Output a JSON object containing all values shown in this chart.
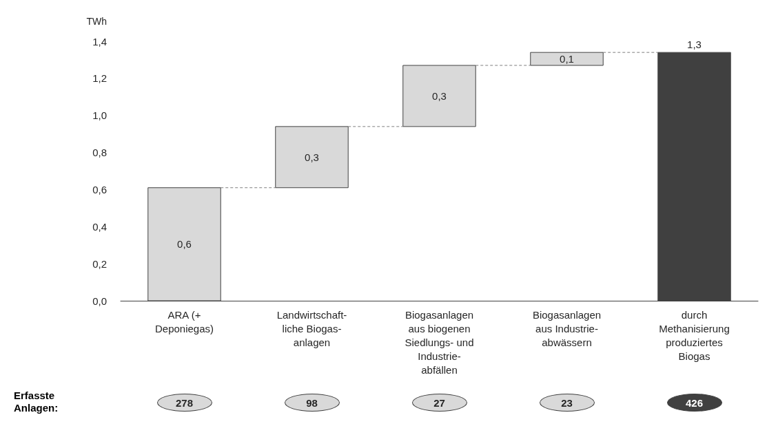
{
  "chart_data": {
    "type": "bar",
    "ylabel": "TWh",
    "categories": [
      "ARA (+\nDeponiegas)",
      "Landwirtschaft-\nliche Biogas-\nanlagen",
      "Biogasanlagen\naus biogenen\nSiedlungs- und\nIndustrie-\nabfällen",
      "Biogasanlagen\naus Industrie-\nabwässern",
      "durch\nMethanisierung\nproduziertes\nBiogas"
    ],
    "values": [
      0.61,
      0.33,
      0.33,
      0.07,
      1.34
    ],
    "base": [
      0,
      0.61,
      0.94,
      1.27,
      0
    ],
    "colors": [
      "#d9d9d9",
      "#d9d9d9",
      "#d9d9d9",
      "#d9d9d9",
      "#404040"
    ],
    "value_labels": [
      "0,6",
      "0,3",
      "0,3",
      "0,1",
      "1,3"
    ],
    "ylim": [
      0,
      1.4
    ],
    "yticks": [
      {
        "value": 0,
        "label": "0,0"
      },
      {
        "value": 0.2,
        "label": "0,2"
      },
      {
        "value": 0.4,
        "label": "0,4"
      },
      {
        "value": 0.6,
        "label": "0,6"
      },
      {
        "value": 0.8,
        "label": "0,8"
      },
      {
        "value": 1.0,
        "label": "1,0"
      },
      {
        "value": 1.2,
        "label": "1,2"
      },
      {
        "value": 1.4,
        "label": "1,4"
      }
    ],
    "grid": false,
    "annotations": [
      "Erfasste\nAnlagen:",
      "278",
      "98",
      "27",
      "23",
      "426"
    ]
  }
}
